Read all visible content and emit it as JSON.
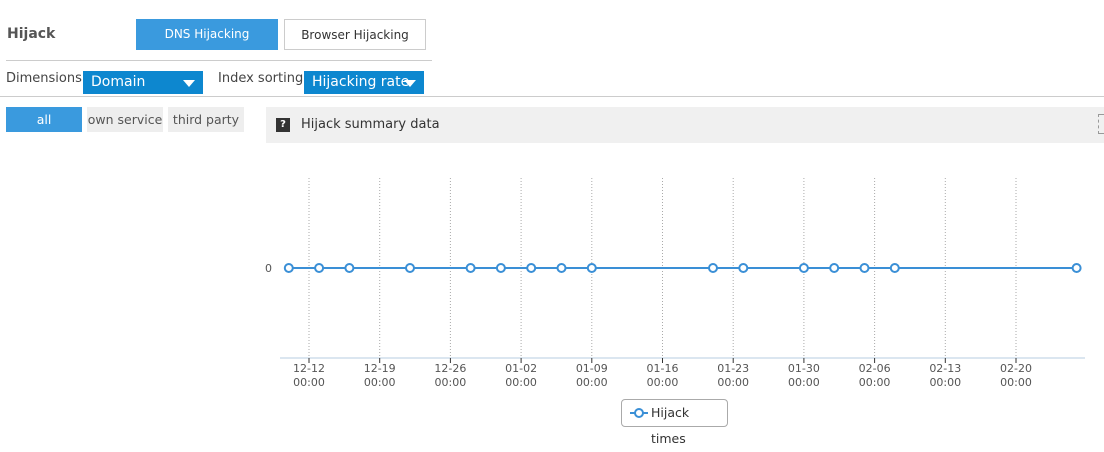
{
  "header": {
    "title": "Hijack",
    "tabs": [
      {
        "label": "DNS Hijacking",
        "active": true
      },
      {
        "label": "Browser Hijacking",
        "active": false
      }
    ]
  },
  "filters": {
    "dimensions_label": "Dimensions",
    "dimensions_value": "Domain",
    "sorting_label": "Index sorting",
    "sorting_value": "Hijacking rate"
  },
  "scope_buttons": [
    {
      "label": "all",
      "active": true
    },
    {
      "label": "own service",
      "active": false
    },
    {
      "label": "third party",
      "active": false
    }
  ],
  "summary": {
    "icon": "question-icon",
    "icon_text": "?",
    "title": "Hijack summary data"
  },
  "colors": {
    "accent": "#3a9ade",
    "select": "#0d87cf",
    "series": "#3a8fd6"
  },
  "chart_data": {
    "type": "line",
    "title": "",
    "xlabel": "",
    "ylabel": "",
    "y_ticks": [
      "0"
    ],
    "x_ticks": [
      [
        "12-12",
        "00:00"
      ],
      [
        "12-19",
        "00:00"
      ],
      [
        "12-26",
        "00:00"
      ],
      [
        "01-02",
        "00:00"
      ],
      [
        "01-09",
        "00:00"
      ],
      [
        "01-16",
        "00:00"
      ],
      [
        "01-23",
        "00:00"
      ],
      [
        "01-30",
        "00:00"
      ],
      [
        "02-06",
        "00:00"
      ],
      [
        "02-13",
        "00:00"
      ],
      [
        "02-20",
        "00:00"
      ]
    ],
    "grid": "vertical dotted",
    "legend_placement": "bottom",
    "series": [
      {
        "name": "Hijack times",
        "points": [
          {
            "x": "12-10",
            "y": 0
          },
          {
            "x": "12-13",
            "y": 0
          },
          {
            "x": "12-16",
            "y": 0
          },
          {
            "x": "12-22",
            "y": 0
          },
          {
            "x": "12-28",
            "y": 0
          },
          {
            "x": "12-31",
            "y": 0
          },
          {
            "x": "01-03",
            "y": 0
          },
          {
            "x": "01-06",
            "y": 0
          },
          {
            "x": "01-09",
            "y": 0
          },
          {
            "x": "01-21",
            "y": 0
          },
          {
            "x": "01-24",
            "y": 0
          },
          {
            "x": "01-30",
            "y": 0
          },
          {
            "x": "02-02",
            "y": 0
          },
          {
            "x": "02-05",
            "y": 0
          },
          {
            "x": "02-08",
            "y": 0
          },
          {
            "x": "02-26",
            "y": 0
          }
        ]
      }
    ]
  }
}
